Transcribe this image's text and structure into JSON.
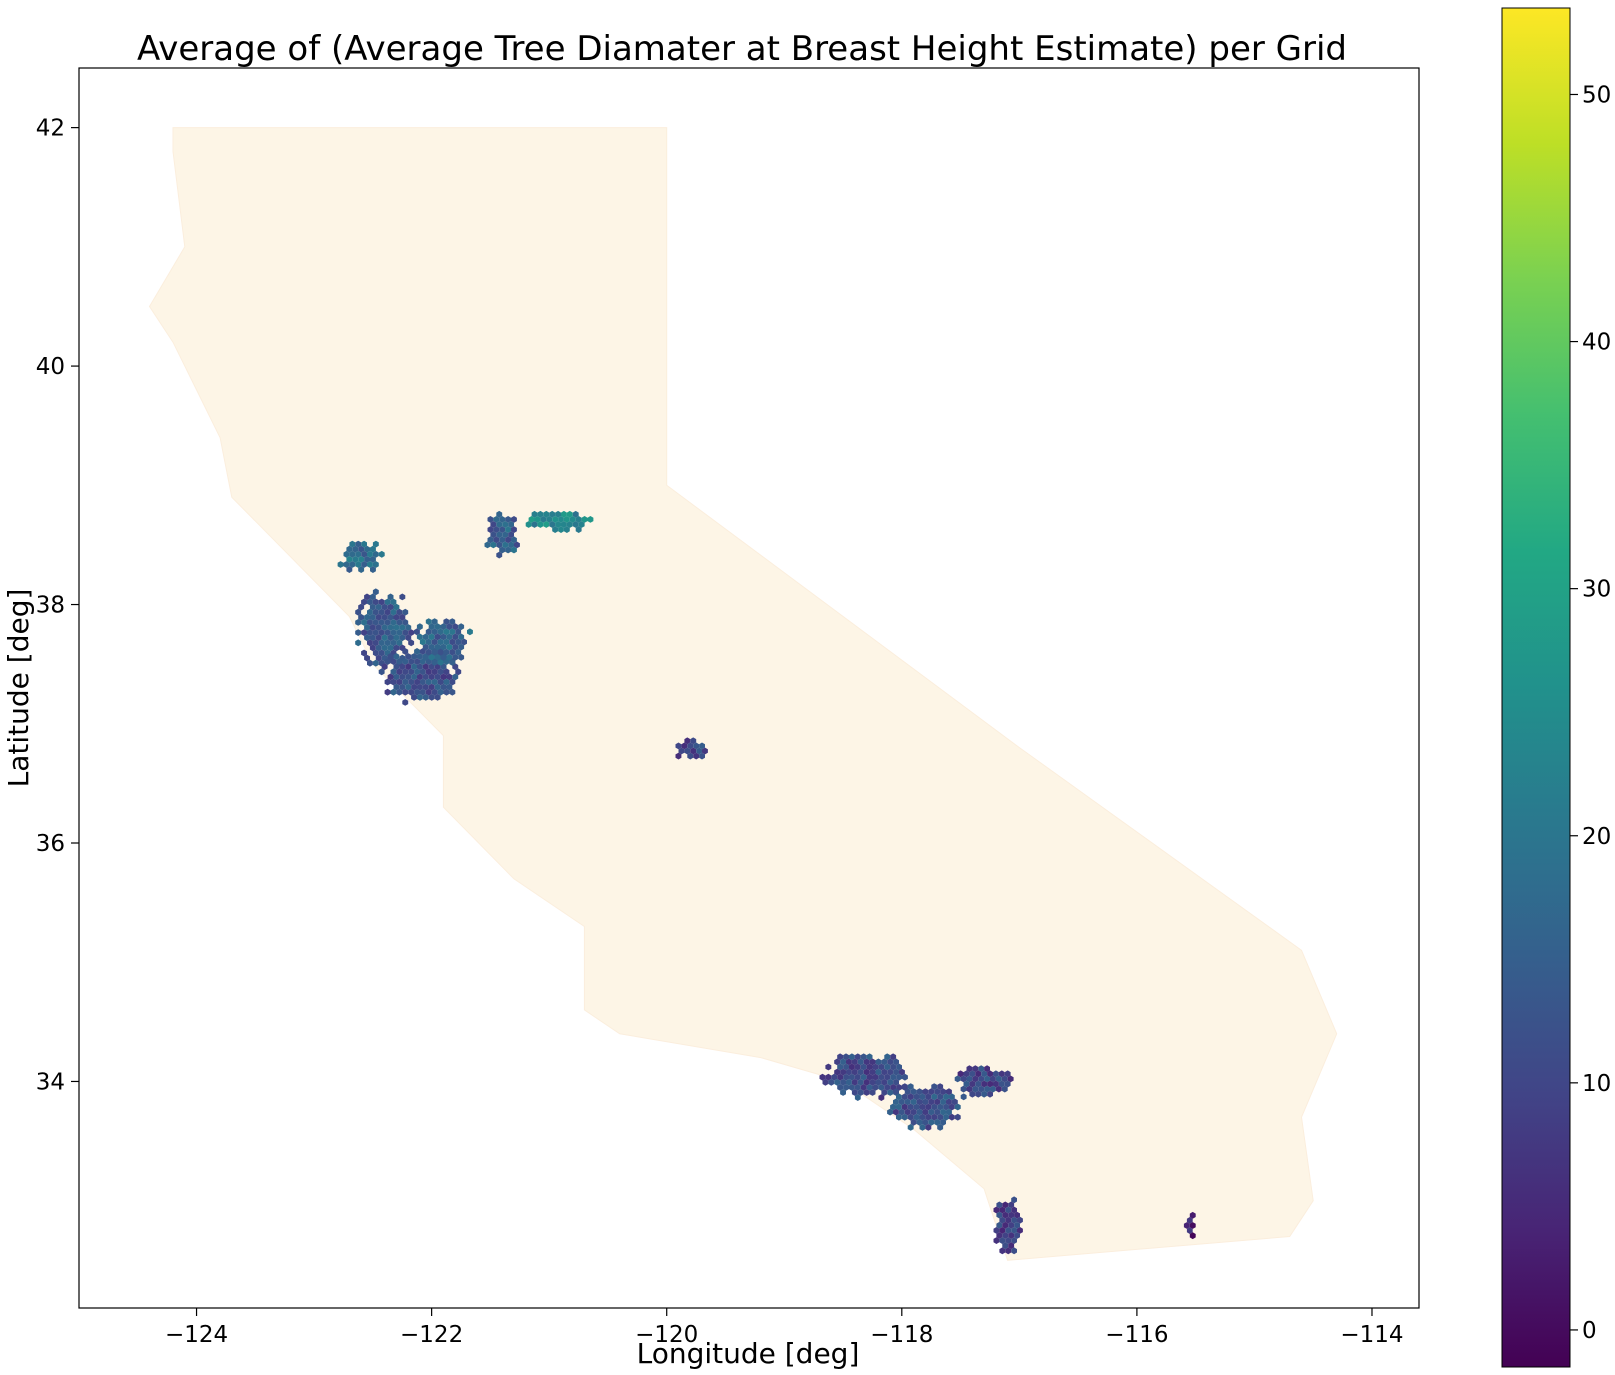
{
  "chart_data": {
    "type": "heatmap",
    "subtype": "hexbin-geographic",
    "title": "Average of (Average Tree Diamater at Breast Height Estimate) per Grid",
    "xlabel": "Longitude [deg]",
    "ylabel": "Latitude [deg]",
    "xlim": [
      -125.0,
      -113.6
    ],
    "ylim": [
      32.1,
      42.5
    ],
    "xticks": [
      -124,
      -122,
      -120,
      -118,
      -116,
      -114
    ],
    "yticks": [
      34,
      36,
      38,
      40,
      42
    ],
    "grid": false,
    "colormap": "viridis",
    "colorbar": {
      "range": [
        -1.5,
        53.5
      ],
      "ticks": [
        0,
        10,
        20,
        30,
        40,
        50
      ],
      "placement": "right"
    },
    "background_region": {
      "name": "California",
      "color": "#fdf5e6",
      "outline": [
        [
          -124.2,
          42.0
        ],
        [
          -120.0,
          42.0
        ],
        [
          -120.0,
          39.0
        ],
        [
          -117.0,
          36.8
        ],
        [
          -114.6,
          35.1
        ],
        [
          -114.3,
          34.4
        ],
        [
          -114.6,
          33.7
        ],
        [
          -114.5,
          33.0
        ],
        [
          -114.7,
          32.7
        ],
        [
          -117.1,
          32.5
        ],
        [
          -117.3,
          33.1
        ],
        [
          -117.9,
          33.6
        ],
        [
          -118.5,
          34.0
        ],
        [
          -119.2,
          34.2
        ],
        [
          -120.4,
          34.4
        ],
        [
          -120.7,
          34.6
        ],
        [
          -120.7,
          35.3
        ],
        [
          -121.3,
          35.7
        ],
        [
          -121.9,
          36.3
        ],
        [
          -121.9,
          36.9
        ],
        [
          -122.5,
          37.5
        ],
        [
          -122.7,
          37.9
        ],
        [
          -123.0,
          38.2
        ],
        [
          -123.7,
          38.9
        ],
        [
          -123.8,
          39.4
        ],
        [
          -124.2,
          40.2
        ],
        [
          -124.4,
          40.5
        ],
        [
          -124.1,
          41.0
        ],
        [
          -124.2,
          41.8
        ]
      ]
    },
    "clusters": [
      {
        "lon": -122.4,
        "lat": 37.8,
        "rx": 0.25,
        "ry": 0.35,
        "value": 14
      },
      {
        "lon": -122.1,
        "lat": 37.4,
        "rx": 0.35,
        "ry": 0.25,
        "value": 12
      },
      {
        "lon": -121.9,
        "lat": 37.7,
        "rx": 0.25,
        "ry": 0.2,
        "value": 16
      },
      {
        "lon": -122.6,
        "lat": 38.4,
        "rx": 0.2,
        "ry": 0.15,
        "value": 18
      },
      {
        "lon": -121.4,
        "lat": 38.6,
        "rx": 0.15,
        "ry": 0.2,
        "value": 15
      },
      {
        "lon": -120.9,
        "lat": 38.7,
        "rx": 0.3,
        "ry": 0.1,
        "value": 24
      },
      {
        "lon": -119.8,
        "lat": 36.8,
        "rx": 0.15,
        "ry": 0.1,
        "value": 10
      },
      {
        "lon": -118.3,
        "lat": 34.05,
        "rx": 0.4,
        "ry": 0.2,
        "value": 11
      },
      {
        "lon": -117.8,
        "lat": 33.8,
        "rx": 0.35,
        "ry": 0.2,
        "value": 12
      },
      {
        "lon": -117.3,
        "lat": 34.0,
        "rx": 0.25,
        "ry": 0.15,
        "value": 10
      },
      {
        "lon": -117.1,
        "lat": 32.8,
        "rx": 0.12,
        "ry": 0.25,
        "value": 9
      },
      {
        "lon": -115.55,
        "lat": 32.8,
        "rx": 0.05,
        "ry": 0.12,
        "value": 4
      }
    ]
  }
}
